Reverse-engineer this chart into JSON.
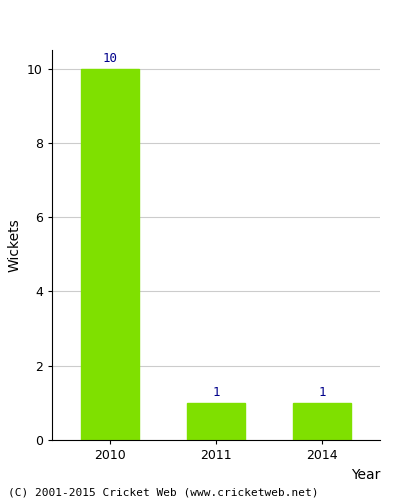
{
  "categories": [
    "2010",
    "2011",
    "2014"
  ],
  "values": [
    10,
    1,
    1
  ],
  "bar_color": "#7FE000",
  "xlabel": "Year",
  "ylabel": "Wickets",
  "ylim": [
    0,
    10.5
  ],
  "yticks": [
    0,
    2,
    4,
    6,
    8,
    10
  ],
  "bar_width": 0.55,
  "label_color": "#00008B",
  "label_fontsize": 9,
  "axis_label_fontsize": 10,
  "tick_fontsize": 9,
  "footer_text": "(C) 2001-2015 Cricket Web (www.cricketweb.net)",
  "footer_fontsize": 8,
  "background_color": "#ffffff",
  "grid_color": "#cccccc"
}
